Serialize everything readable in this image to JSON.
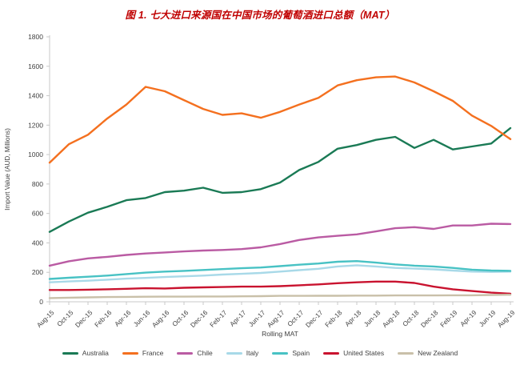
{
  "title": {
    "text": "图 1. 七大进口来源国在中国市场的葡萄酒进口总额（MAT）",
    "color": "#C00000"
  },
  "chart_data": {
    "type": "line",
    "title": "图 1. 七大进口来源国在中国市场的葡萄酒进口总额（MAT）",
    "xlabel": "Rolling MAT",
    "ylabel": "Import Value (AUD, Millions)",
    "ylim": [
      0,
      1800
    ],
    "ytick_step": 200,
    "grid": false,
    "legend_position": "bottom",
    "x_categories": [
      "Aug-15",
      "Oct-15",
      "Dec-15",
      "Feb-16",
      "Apr-16",
      "Jun-16",
      "Aug-16",
      "Oct-16",
      "Dec-16",
      "Feb-17",
      "Apr-17",
      "Jun-17",
      "Aug-17",
      "Oct-17",
      "Dec-17",
      "Feb-18",
      "Apr-18",
      "Jun-18",
      "Aug-18",
      "Oct-18",
      "Dec-18",
      "Feb-19",
      "Apr-19",
      "Jun-19",
      "Aug-19"
    ],
    "series": [
      {
        "name": "Australia",
        "color": "#1A7A55",
        "values": [
          475,
          545,
          605,
          645,
          690,
          705,
          745,
          755,
          775,
          740,
          745,
          765,
          810,
          895,
          950,
          1040,
          1065,
          1100,
          1120,
          1045,
          1100,
          1035,
          1055,
          1075,
          1180
        ]
      },
      {
        "name": "France",
        "color": "#F4701F",
        "values": [
          945,
          1070,
          1135,
          1245,
          1340,
          1460,
          1430,
          1370,
          1310,
          1270,
          1280,
          1250,
          1290,
          1340,
          1385,
          1470,
          1505,
          1525,
          1530,
          1490,
          1430,
          1365,
          1265,
          1195,
          1105
        ]
      },
      {
        "name": "Chile",
        "color": "#BA5BA3",
        "values": [
          245,
          275,
          295,
          305,
          318,
          328,
          335,
          342,
          348,
          352,
          358,
          370,
          392,
          420,
          437,
          448,
          458,
          478,
          500,
          507,
          495,
          518,
          518,
          530,
          528
        ]
      },
      {
        "name": "Italy",
        "color": "#A8D9E8",
        "values": [
          132,
          138,
          143,
          150,
          157,
          162,
          168,
          173,
          178,
          185,
          190,
          196,
          205,
          215,
          224,
          240,
          248,
          240,
          230,
          225,
          220,
          212,
          205,
          203,
          205
        ]
      },
      {
        "name": "Spain",
        "color": "#48C2C4",
        "values": [
          155,
          163,
          170,
          178,
          188,
          198,
          205,
          210,
          216,
          222,
          228,
          233,
          242,
          252,
          260,
          272,
          276,
          266,
          254,
          245,
          240,
          230,
          218,
          212,
          210
        ]
      },
      {
        "name": "United States",
        "color": "#C9132F",
        "values": [
          80,
          80,
          82,
          85,
          88,
          92,
          90,
          95,
          98,
          100,
          103,
          103,
          106,
          112,
          118,
          126,
          132,
          137,
          137,
          128,
          103,
          85,
          73,
          62,
          55
        ]
      },
      {
        "name": "New Zealand",
        "color": "#C9C0A9",
        "values": [
          25,
          28,
          30,
          32,
          33,
          34,
          35,
          35,
          36,
          36,
          37,
          38,
          40,
          40,
          41,
          41,
          42,
          42,
          43,
          43,
          43,
          44,
          44,
          46,
          48
        ]
      }
    ]
  },
  "colors": {
    "axis_text": "#404040",
    "tick_text": "#404040",
    "axis_line": "#C9C9C9",
    "background": "#FFFFFF"
  }
}
